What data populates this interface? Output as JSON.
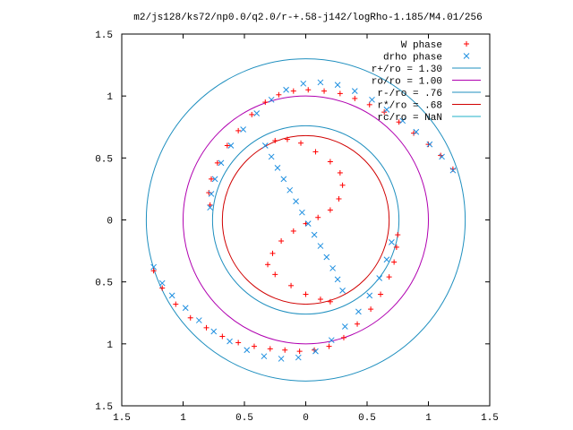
{
  "chart_data": {
    "type": "scatter",
    "title": "m2/js128/ks72/np0.0/q2.0/r-+.58-j142/logRho-1.185/M4.01/256",
    "xlim": [
      -1.5,
      1.5
    ],
    "ylim": [
      -1.5,
      1.5
    ],
    "x_ticks": [
      -1.5,
      -1,
      -0.5,
      0,
      0.5,
      1,
      1.5
    ],
    "y_ticks": [
      -1.5,
      -1,
      -0.5,
      0,
      0.5,
      1,
      1.5
    ],
    "x_tick_labels": [
      "1.5",
      "1",
      "0.5",
      "0",
      "0.5",
      "1",
      "1.5"
    ],
    "y_tick_labels": [
      "1.5",
      "1",
      "0.5",
      "0",
      "0.5",
      "1",
      "1.5"
    ],
    "grid": false,
    "legend_position": "top-right",
    "circles": [
      {
        "name": "r+/ro = 1.30",
        "radius": 1.3,
        "color": "#1f8fbf"
      },
      {
        "name": "ro/ro = 1.00",
        "radius": 1.0,
        "color": "#b000b0"
      },
      {
        "name": "r-/ro = .76",
        "radius": 0.76,
        "color": "#1f8fbf"
      },
      {
        "name": "r*/ro = .68",
        "radius": 0.68,
        "color": "#d00000"
      },
      {
        "name": "rc/ro = NaN",
        "radius": null,
        "color": "#20b0c8"
      }
    ],
    "series": [
      {
        "name": "W phase",
        "marker": "plus",
        "color": "#ff0000",
        "points": [
          [
            -0.78,
            0.12
          ],
          [
            -0.79,
            0.22
          ],
          [
            -0.77,
            0.33
          ],
          [
            -0.72,
            0.46
          ],
          [
            -0.64,
            0.6
          ],
          [
            -0.55,
            0.72
          ],
          [
            -0.44,
            0.85
          ],
          [
            -0.33,
            0.95
          ],
          [
            -0.22,
            1.01
          ],
          [
            -0.1,
            1.04
          ],
          [
            0.02,
            1.05
          ],
          [
            0.15,
            1.04
          ],
          [
            0.28,
            1.02
          ],
          [
            0.4,
            0.98
          ],
          [
            0.52,
            0.93
          ],
          [
            0.64,
            0.87
          ],
          [
            0.76,
            0.79
          ],
          [
            0.88,
            0.7
          ],
          [
            1.0,
            0.61
          ],
          [
            1.1,
            0.52
          ],
          [
            1.2,
            0.41
          ],
          [
            0.75,
            -0.12
          ],
          [
            0.74,
            -0.22
          ],
          [
            0.72,
            -0.34
          ],
          [
            0.68,
            -0.46
          ],
          [
            0.61,
            -0.6
          ],
          [
            0.53,
            -0.72
          ],
          [
            0.42,
            -0.84
          ],
          [
            0.31,
            -0.95
          ],
          [
            0.19,
            -1.02
          ],
          [
            0.07,
            -1.05
          ],
          [
            -0.05,
            -1.06
          ],
          [
            -0.17,
            -1.05
          ],
          [
            -0.29,
            -1.04
          ],
          [
            -0.42,
            -1.02
          ],
          [
            -0.55,
            -0.99
          ],
          [
            -0.68,
            -0.94
          ],
          [
            -0.81,
            -0.87
          ],
          [
            -0.94,
            -0.79
          ],
          [
            -1.06,
            -0.68
          ],
          [
            -1.17,
            -0.55
          ],
          [
            -1.24,
            -0.41
          ],
          [
            -0.25,
            0.64
          ],
          [
            -0.15,
            0.65
          ],
          [
            -0.04,
            0.62
          ],
          [
            0.08,
            0.55
          ],
          [
            0.2,
            0.47
          ],
          [
            0.28,
            0.38
          ],
          [
            0.3,
            0.28
          ],
          [
            0.27,
            0.17
          ],
          [
            0.2,
            0.08
          ],
          [
            0.1,
            0.02
          ],
          [
            0.0,
            -0.03
          ],
          [
            -0.1,
            -0.09
          ],
          [
            -0.2,
            -0.17
          ],
          [
            -0.27,
            -0.27
          ],
          [
            -0.31,
            -0.36
          ],
          [
            -0.25,
            -0.44
          ],
          [
            -0.12,
            -0.53
          ],
          [
            0.0,
            -0.6
          ],
          [
            0.12,
            -0.64
          ],
          [
            0.2,
            -0.66
          ]
        ]
      },
      {
        "name": "drho phase",
        "marker": "cross",
        "color": "#1e8fe0",
        "points": [
          [
            -0.78,
            0.1
          ],
          [
            -0.77,
            0.21
          ],
          [
            -0.74,
            0.33
          ],
          [
            -0.69,
            0.46
          ],
          [
            -0.61,
            0.6
          ],
          [
            -0.51,
            0.73
          ],
          [
            -0.4,
            0.86
          ],
          [
            -0.28,
            0.97
          ],
          [
            -0.16,
            1.05
          ],
          [
            -0.02,
            1.1
          ],
          [
            0.12,
            1.11
          ],
          [
            0.26,
            1.09
          ],
          [
            0.4,
            1.04
          ],
          [
            0.54,
            0.97
          ],
          [
            0.66,
            0.89
          ],
          [
            0.79,
            0.8
          ],
          [
            0.9,
            0.71
          ],
          [
            1.01,
            0.61
          ],
          [
            1.11,
            0.51
          ],
          [
            1.2,
            0.4
          ],
          [
            0.7,
            -0.18
          ],
          [
            0.66,
            -0.32
          ],
          [
            0.6,
            -0.47
          ],
          [
            0.52,
            -0.61
          ],
          [
            0.43,
            -0.74
          ],
          [
            0.32,
            -0.86
          ],
          [
            0.21,
            -0.97
          ],
          [
            0.08,
            -1.06
          ],
          [
            -0.06,
            -1.11
          ],
          [
            -0.2,
            -1.12
          ],
          [
            -0.34,
            -1.1
          ],
          [
            -0.48,
            -1.05
          ],
          [
            -0.62,
            -0.98
          ],
          [
            -0.75,
            -0.9
          ],
          [
            -0.87,
            -0.81
          ],
          [
            -0.98,
            -0.71
          ],
          [
            -1.09,
            -0.61
          ],
          [
            -1.17,
            -0.51
          ],
          [
            -1.24,
            -0.38
          ],
          [
            -0.33,
            0.6
          ],
          [
            -0.28,
            0.51
          ],
          [
            -0.23,
            0.42
          ],
          [
            -0.18,
            0.33
          ],
          [
            -0.13,
            0.24
          ],
          [
            -0.08,
            0.15
          ],
          [
            -0.03,
            0.06
          ],
          [
            0.02,
            -0.03
          ],
          [
            0.07,
            -0.12
          ],
          [
            0.12,
            -0.21
          ],
          [
            0.17,
            -0.3
          ],
          [
            0.22,
            -0.39
          ],
          [
            0.26,
            -0.48
          ],
          [
            0.3,
            -0.57
          ]
        ]
      }
    ]
  }
}
